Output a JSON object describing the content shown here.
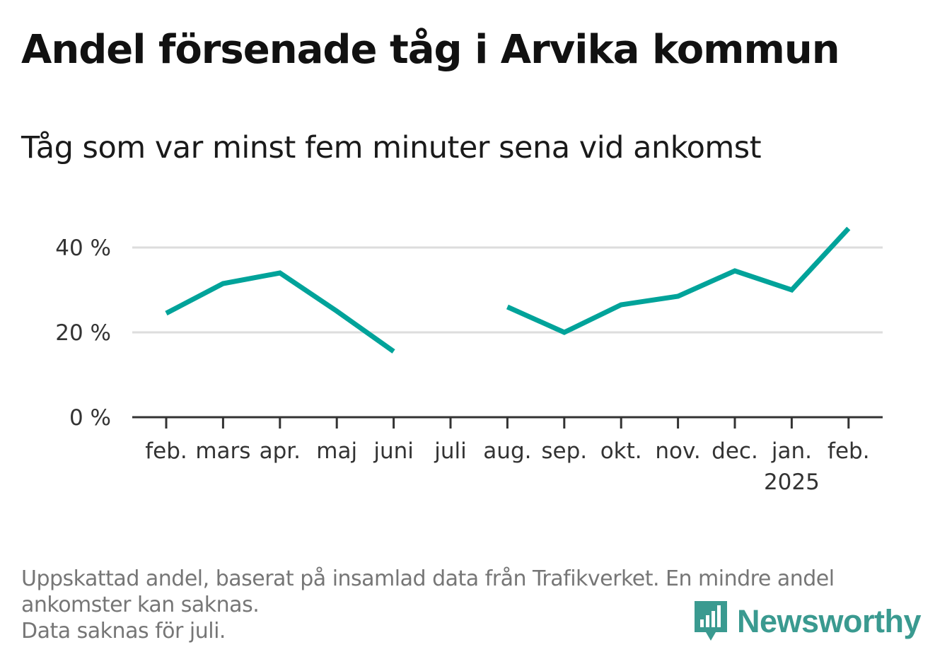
{
  "title": "Andel försenade tåg i Arvika kommun",
  "subtitle": "Tåg som var minst fem minuter sena vid ankomst",
  "footer": {
    "line1": "Uppskattad andel, baserat på insamlad data från Trafikverket. En mindre andel",
    "line2": "ankomster kan saknas.",
    "line3": "Data saknas för juli."
  },
  "brand": {
    "name": "Newsworthy",
    "icon": "newsworthy-logo-icon",
    "color": "#3a9a90"
  },
  "chart_data": {
    "type": "line",
    "categories": [
      "feb.",
      "mars",
      "apr.",
      "maj",
      "juni",
      "juli",
      "aug.",
      "sep.",
      "okt.",
      "nov.",
      "dec.",
      "jan.",
      "feb."
    ],
    "year_labels": [
      "",
      "",
      "",
      "",
      "",
      "",
      "",
      "",
      "",
      "",
      "",
      "2025",
      ""
    ],
    "series": [
      {
        "values": [
          24.5,
          31.5,
          34,
          25,
          15.5,
          null,
          26,
          20,
          26.5,
          28.5,
          34.5,
          30,
          44.5
        ],
        "color": "#00a39a"
      }
    ],
    "y_ticks": [
      0,
      20,
      40
    ],
    "y_tick_labels": [
      "0 %",
      "20 %",
      "40 %"
    ],
    "ylim": [
      0,
      40
    ],
    "grid": true,
    "legend": "none"
  }
}
